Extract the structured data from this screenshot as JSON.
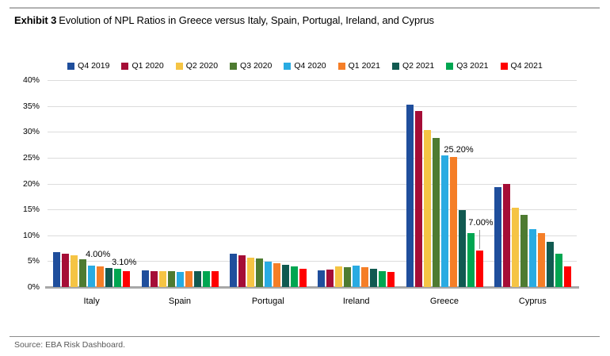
{
  "header": {
    "exhibit_label": "Exhibit 3",
    "title": "Evolution of NPL Ratios in Greece versus Italy, Spain, Portugal, Ireland, and Cyprus"
  },
  "footer": {
    "source": "Source: EBA Risk Dashboard."
  },
  "chart_data": {
    "type": "bar",
    "title": "Exhibit 3 Evolution of NPL Ratios in Greece versus Italy, Spain, Portugal, Ireland, and Cyprus",
    "categories": [
      "Italy",
      "Spain",
      "Portugal",
      "Ireland",
      "Greece",
      "Cyprus"
    ],
    "series": [
      {
        "name": "Q4 2019",
        "color": "#1F4E9C",
        "values": [
          6.7,
          3.2,
          6.5,
          3.3,
          35.2,
          19.3
        ]
      },
      {
        "name": "Q1 2020",
        "color": "#A50D36",
        "values": [
          6.4,
          3.1,
          6.2,
          3.4,
          34.0,
          20.0
        ]
      },
      {
        "name": "Q2 2020",
        "color": "#F5C444",
        "values": [
          6.1,
          3.0,
          5.7,
          4.0,
          30.3,
          15.3
        ]
      },
      {
        "name": "Q3 2020",
        "color": "#4E7B31",
        "values": [
          5.4,
          3.0,
          5.5,
          3.9,
          28.8,
          14.0
        ]
      },
      {
        "name": "Q4 2020",
        "color": "#29ABE2",
        "values": [
          4.2,
          2.9,
          4.9,
          4.2,
          25.5,
          11.2
        ]
      },
      {
        "name": "Q1 2021",
        "color": "#F57E27",
        "values": [
          4.0,
          3.0,
          4.6,
          3.8,
          25.2,
          10.5
        ]
      },
      {
        "name": "Q2 2021",
        "color": "#115A51",
        "values": [
          3.7,
          3.0,
          4.3,
          3.5,
          14.8,
          8.7
        ]
      },
      {
        "name": "Q3 2021",
        "color": "#00A651",
        "values": [
          3.6,
          3.0,
          4.0,
          3.1,
          10.5,
          6.5
        ]
      },
      {
        "name": "Q4 2021",
        "color": "#FF0000",
        "values": [
          3.1,
          3.0,
          3.6,
          2.9,
          7.0,
          4.0
        ]
      }
    ],
    "ylim": [
      0,
      40
    ],
    "y_ticks": [
      "0%",
      "5%",
      "10%",
      "15%",
      "20%",
      "25%",
      "30%",
      "35%",
      "40%"
    ],
    "grid": "horizontal",
    "legend_position": "top",
    "annotations": [
      {
        "text": "4.00%",
        "category": "Italy",
        "series": "Q1 2021",
        "dx": -3,
        "gap": 8,
        "leader": false
      },
      {
        "text": "3.10%",
        "category": "Italy",
        "series": "Q4 2021",
        "dx": -3,
        "gap": 4,
        "leader": false
      },
      {
        "text": "25.20%",
        "category": "Greece",
        "series": "Q1 2021",
        "dx": 7,
        "gap": 2,
        "leader": false
      },
      {
        "text": "7.00%",
        "category": "Greece",
        "series": "Q4 2021",
        "dx": 2,
        "gap": 28,
        "leader": true
      }
    ]
  }
}
